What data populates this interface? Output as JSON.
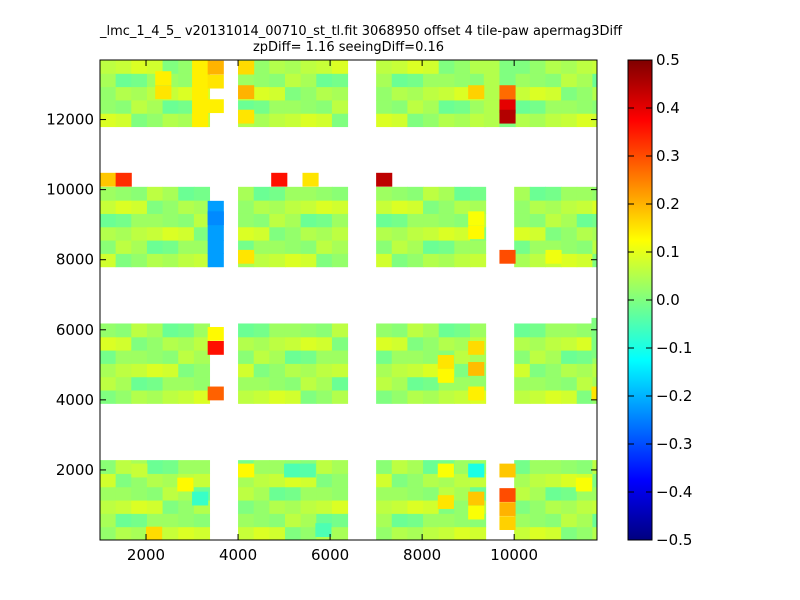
{
  "chart_data": {
    "type": "heatmap",
    "title": "_lmc_1_4_5_ v20131014_00710_st_tl.fit 3068950 offset 4 tile-paw apermag3Diff",
    "subtitle": "zpDiff= 1.16 seeingDiff=0.16",
    "xlim": [
      1000,
      11800
    ],
    "ylim": [
      0,
      13700
    ],
    "x_ticks": [
      2000,
      4000,
      6000,
      8000,
      10000
    ],
    "y_ticks": [
      2000,
      4000,
      6000,
      8000,
      10000,
      12000
    ],
    "colorbar": {
      "range": [
        -0.5,
        0.5
      ],
      "ticks": [
        "0.5",
        "0.4",
        "0.3",
        "0.2",
        "0.1",
        "0.0",
        "−0.1",
        "−0.2",
        "−0.3",
        "−0.4",
        "−0.5"
      ],
      "colormap": "jet"
    },
    "cell_size": [
      340,
      380
    ],
    "column_blocks_x": [
      [
        1000,
        3380
      ],
      [
        4000,
        6380
      ],
      [
        7000,
        9380
      ],
      [
        10000,
        12380
      ]
    ],
    "row_blocks_y": [
      [
        0,
        2280
      ],
      [
        3900,
        6180
      ],
      [
        7800,
        10080
      ],
      [
        11800,
        14080
      ]
    ],
    "base_values": [
      0.02,
      0.04,
      0.06,
      0.03,
      0.08,
      0.01,
      0.05,
      -0.02,
      0.07,
      0.03,
      0.0,
      0.06,
      0.04,
      -0.01,
      0.09,
      0.02
    ],
    "column_overrides": [
      {
        "x": 3000,
        "y": [
          11800,
          14080
        ],
        "value": 0.14
      },
      {
        "x": 3340,
        "y": [
          7800,
          9080
        ],
        "value": -0.22
      },
      {
        "x": 9340,
        "y": [
          11800,
          13700
        ],
        "value": 0.05
      },
      {
        "x": 9680,
        "y": [
          11800,
          14080
        ],
        "value": 0.0
      },
      {
        "x": 11680,
        "y": [
          5200,
          6180
        ],
        "value": 0.0
      }
    ],
    "highlight_cells": [
      {
        "x": 2200,
        "y": 12600,
        "value": 0.15
      },
      {
        "x": 2200,
        "y": 13000,
        "value": 0.14
      },
      {
        "x": 3340,
        "y": 13300,
        "value": 0.2
      },
      {
        "x": 3340,
        "y": 12900,
        "value": 0.15
      },
      {
        "x": 3340,
        "y": 12200,
        "value": 0.14
      },
      {
        "x": 4000,
        "y": 13300,
        "value": 0.16
      },
      {
        "x": 4000,
        "y": 12600,
        "value": 0.2
      },
      {
        "x": 4000,
        "y": 11900,
        "value": 0.15
      },
      {
        "x": 9000,
        "y": 12600,
        "value": 0.17
      },
      {
        "x": 9680,
        "y": 12600,
        "value": 0.27
      },
      {
        "x": 9680,
        "y": 12200,
        "value": 0.4
      },
      {
        "x": 9680,
        "y": 11900,
        "value": 0.45
      },
      {
        "x": 1000,
        "y": 10100,
        "value": 0.18
      },
      {
        "x": 1340,
        "y": 10100,
        "value": 0.33
      },
      {
        "x": 4720,
        "y": 10100,
        "value": 0.36
      },
      {
        "x": 5400,
        "y": 10100,
        "value": 0.15
      },
      {
        "x": 7000,
        "y": 10100,
        "value": 0.44
      },
      {
        "x": 3340,
        "y": 9300,
        "value": -0.22
      },
      {
        "x": 3340,
        "y": 9000,
        "value": -0.24
      },
      {
        "x": 4000,
        "y": 7900,
        "value": 0.15
      },
      {
        "x": 9000,
        "y": 9000,
        "value": 0.12
      },
      {
        "x": 9000,
        "y": 8600,
        "value": 0.13
      },
      {
        "x": 9680,
        "y": 7900,
        "value": 0.3
      },
      {
        "x": 10680,
        "y": 7900,
        "value": 0.11
      },
      {
        "x": 3340,
        "y": 5700,
        "value": 0.13
      },
      {
        "x": 3340,
        "y": 5300,
        "value": 0.36
      },
      {
        "x": 3340,
        "y": 4000,
        "value": 0.28
      },
      {
        "x": 9000,
        "y": 5300,
        "value": 0.16
      },
      {
        "x": 9000,
        "y": 4700,
        "value": 0.19
      },
      {
        "x": 9000,
        "y": 4000,
        "value": 0.14
      },
      {
        "x": 8340,
        "y": 4900,
        "value": 0.15
      },
      {
        "x": 8340,
        "y": 4500,
        "value": 0.13
      },
      {
        "x": 11680,
        "y": 4000,
        "value": 0.15
      },
      {
        "x": 1680,
        "y": 1800,
        "value": 0.07
      },
      {
        "x": 2000,
        "y": 0,
        "value": 0.16
      },
      {
        "x": 2680,
        "y": 1400,
        "value": 0.13
      },
      {
        "x": 3000,
        "y": 1000,
        "value": -0.07
      },
      {
        "x": 4000,
        "y": 1800,
        "value": 0.13
      },
      {
        "x": 5000,
        "y": 1800,
        "value": -0.05
      },
      {
        "x": 5340,
        "y": 1800,
        "value": -0.04
      },
      {
        "x": 5680,
        "y": 100,
        "value": -0.05
      },
      {
        "x": 8340,
        "y": 1800,
        "value": 0.12
      },
      {
        "x": 8340,
        "y": 900,
        "value": 0.15
      },
      {
        "x": 9000,
        "y": 1800,
        "value": -0.1
      },
      {
        "x": 9000,
        "y": 1000,
        "value": 0.18
      },
      {
        "x": 9000,
        "y": 600,
        "value": 0.12
      },
      {
        "x": 9680,
        "y": 1800,
        "value": 0.18
      },
      {
        "x": 9680,
        "y": 1100,
        "value": 0.3
      },
      {
        "x": 9680,
        "y": 700,
        "value": 0.2
      },
      {
        "x": 9680,
        "y": 300,
        "value": 0.17
      },
      {
        "x": 11340,
        "y": 1400,
        "value": 0.12
      }
    ]
  }
}
